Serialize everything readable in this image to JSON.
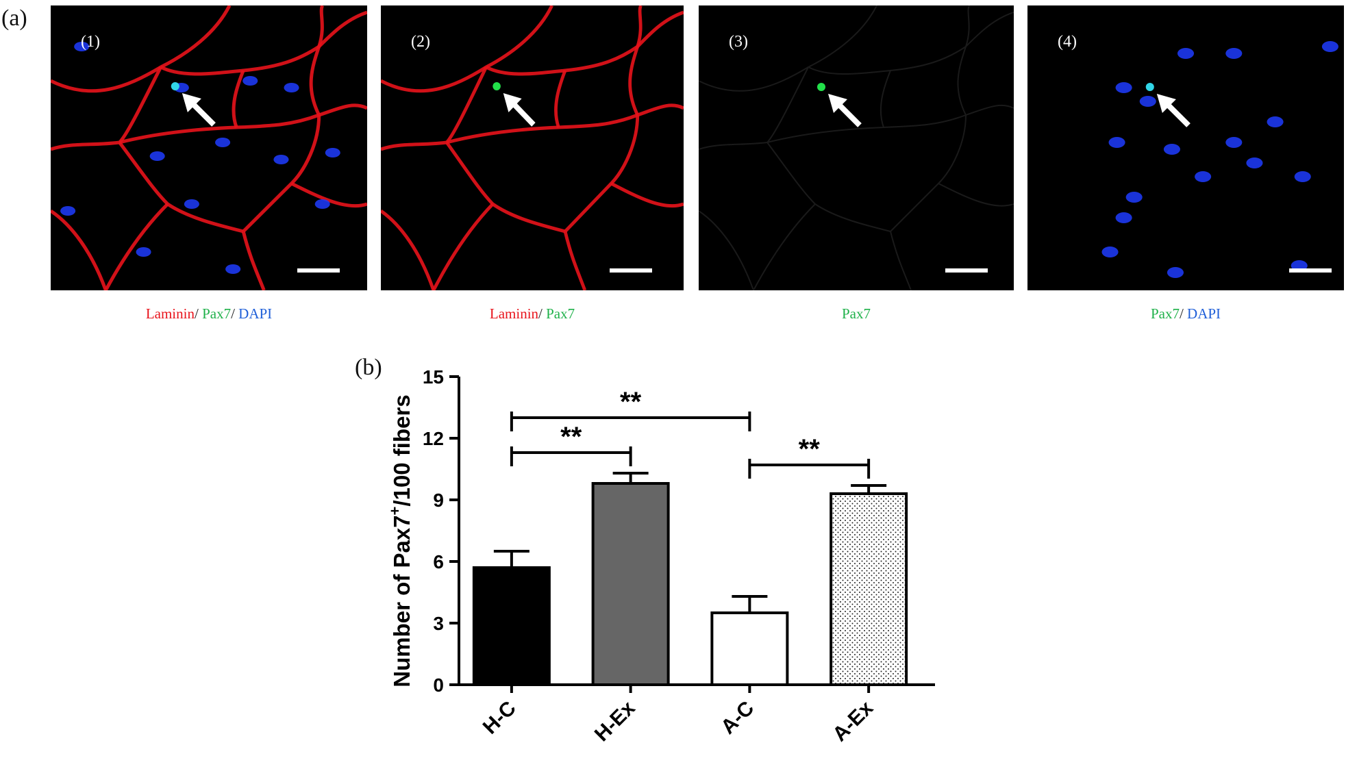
{
  "panel_a": {
    "label": "(a)",
    "images": [
      {
        "number": "(1)",
        "caption": [
          {
            "text": "Laminin",
            "color": "red"
          },
          {
            "text": "/ ",
            "color": "dark"
          },
          {
            "text": "Pax7",
            "color": "green"
          },
          {
            "text": "/ ",
            "color": "dark"
          },
          {
            "text": "DAPI",
            "color": "blue"
          }
        ],
        "channels": [
          "laminin",
          "pax7",
          "dapi"
        ]
      },
      {
        "number": "(2)",
        "caption": [
          {
            "text": "Laminin",
            "color": "red"
          },
          {
            "text": "/ ",
            "color": "dark"
          },
          {
            "text": "Pax7",
            "color": "green"
          }
        ],
        "channels": [
          "laminin",
          "pax7"
        ]
      },
      {
        "number": "(3)",
        "caption": [
          {
            "text": "Pax7",
            "color": "green"
          }
        ],
        "channels": [
          "pax7"
        ]
      },
      {
        "number": "(4)",
        "caption": [
          {
            "text": "Pax7",
            "color": "green"
          },
          {
            "text": "/ ",
            "color": "dark"
          },
          {
            "text": "DAPI",
            "color": "blue"
          }
        ],
        "channels": [
          "pax7",
          "dapi"
        ]
      }
    ],
    "colors": {
      "laminin": "#e8131b",
      "pax7": "#22e04a",
      "dapi": "#1f3cff",
      "arrow": "#ffffff"
    }
  },
  "panel_b": {
    "label": "(b)",
    "chart_data": {
      "type": "bar",
      "categories": [
        "H-C",
        "H-Ex",
        "A-C",
        "A-Ex"
      ],
      "values": [
        5.7,
        9.8,
        3.5,
        9.3
      ],
      "errors": [
        0.8,
        0.5,
        0.8,
        0.4
      ],
      "fills": [
        "solid-black",
        "solid-gray",
        "white",
        "dotted"
      ],
      "ylabel_prefix": "Number of Pax7",
      "ylabel_sup": "+",
      "ylabel_suffix": "/100 fibers",
      "xlabel": "",
      "ylim": [
        0,
        15
      ],
      "yticks": [
        0,
        3,
        6,
        9,
        12,
        15
      ],
      "significance": [
        {
          "from": "H-C",
          "to": "H-Ex",
          "label": "**",
          "y": 11.3
        },
        {
          "from": "H-C",
          "to": "A-C",
          "label": "**",
          "y": 13.0
        },
        {
          "from": "A-C",
          "to": "A-Ex",
          "label": "**",
          "y": 10.7
        }
      ],
      "colors": {
        "H-C": "#000000",
        "H-Ex": "#666666",
        "A-C": "#ffffff",
        "A-Ex": "#ffffff"
      }
    }
  }
}
